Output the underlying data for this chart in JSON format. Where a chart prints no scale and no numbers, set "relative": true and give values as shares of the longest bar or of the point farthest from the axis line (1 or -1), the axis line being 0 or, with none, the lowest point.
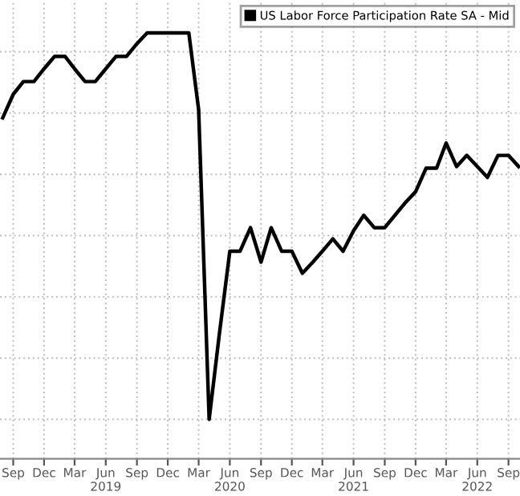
{
  "chart_data": {
    "type": "line",
    "relative": true,
    "grid": true,
    "legend": "top right",
    "marker": "none",
    "line_style": "solid",
    "x": [
      "2018-08",
      "2018-09",
      "2018-10",
      "2018-11",
      "2018-12",
      "2019-01",
      "2019-02",
      "2019-03",
      "2019-04",
      "2019-05",
      "2019-06",
      "2019-07",
      "2019-08",
      "2019-09",
      "2019-10",
      "2019-11",
      "2019-12",
      "2020-01",
      "2020-02",
      "2020-03",
      "2020-04",
      "2020-05",
      "2020-06",
      "2020-07",
      "2020-08",
      "2020-09",
      "2020-10",
      "2020-11",
      "2020-12",
      "2021-01",
      "2021-02",
      "2021-03",
      "2021-04",
      "2021-05",
      "2021-06",
      "2021-07",
      "2021-08",
      "2021-09",
      "2021-10",
      "2021-11",
      "2021-12",
      "2022-01",
      "2022-02",
      "2022-03",
      "2022-04",
      "2022-05",
      "2022-06",
      "2022-07",
      "2022-08",
      "2022-09",
      "2022-10"
    ],
    "series": [
      {
        "name": "US Labor Force Participation Rate SA - Mid",
        "color": "#000000",
        "values": [
          0.78,
          0.841,
          0.874,
          0.874,
          0.907,
          0.939,
          0.939,
          0.907,
          0.874,
          0.874,
          0.907,
          0.939,
          0.939,
          0.972,
          1,
          1,
          1,
          1,
          1,
          0.801,
          0,
          0.22,
          0.435,
          0.435,
          0.496,
          0.407,
          0.496,
          0.435,
          0.435,
          0.378,
          0.407,
          0.435,
          0.467,
          0.435,
          0.488,
          0.528,
          0.496,
          0.496,
          0.528,
          0.561,
          0.589,
          0.65,
          0.65,
          0.715,
          0.654,
          0.683,
          0.654,
          0.626,
          0.683,
          0.683,
          0.654
        ]
      }
    ],
    "xlim": [
      "2018-07-24",
      "2022-10-05"
    ],
    "xticks": [
      {
        "value": "2018-09",
        "label": "Sep"
      },
      {
        "value": "2018-12",
        "label": "Dec"
      },
      {
        "value": "2019-03",
        "label": "Mar"
      },
      {
        "value": "2019-06",
        "label": "Jun\n2019"
      },
      {
        "value": "2019-09",
        "label": "Sep"
      },
      {
        "value": "2019-12",
        "label": "Dec"
      },
      {
        "value": "2020-03",
        "label": "Mar"
      },
      {
        "value": "2020-06",
        "label": "Jun\n2020"
      },
      {
        "value": "2020-09",
        "label": "Sep"
      },
      {
        "value": "2020-12",
        "label": "Dec"
      },
      {
        "value": "2021-03",
        "label": "Mar"
      },
      {
        "value": "2021-06",
        "label": "Jun\n2021"
      },
      {
        "value": "2021-09",
        "label": "Sep"
      },
      {
        "value": "2021-12",
        "label": "Dec"
      },
      {
        "value": "2022-03",
        "label": "Mar"
      },
      {
        "value": "2022-06",
        "label": "Jun\n2022"
      },
      {
        "value": "2022-09",
        "label": "Sep"
      }
    ]
  }
}
